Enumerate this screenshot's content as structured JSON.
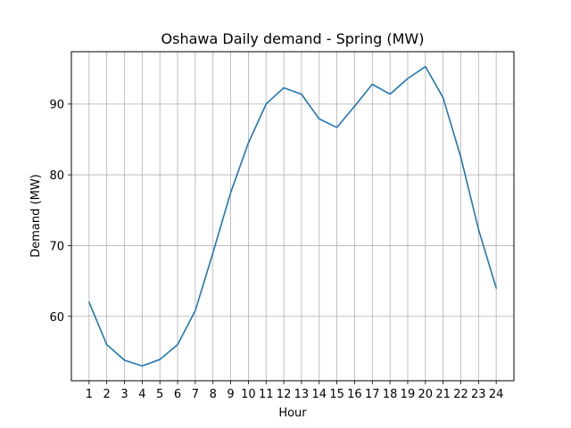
{
  "chart_data": {
    "type": "line",
    "title": "Oshawa Daily demand - Spring (MW)",
    "xlabel": "Hour",
    "ylabel": "Demand (MW)",
    "x": [
      1,
      2,
      3,
      4,
      5,
      6,
      7,
      8,
      9,
      10,
      11,
      12,
      13,
      14,
      15,
      16,
      17,
      18,
      19,
      20,
      21,
      22,
      23,
      24
    ],
    "series": [
      {
        "values": [
          62.0,
          56.0,
          53.8,
          53.0,
          53.9,
          56.0,
          60.8,
          69.0,
          77.5,
          84.5,
          90.0,
          92.3,
          91.4,
          87.9,
          86.7,
          89.7,
          92.8,
          91.4,
          93.6,
          95.3,
          90.9,
          82.5,
          72.3,
          64.0
        ],
        "color": "#1f77b4"
      }
    ],
    "xlim": [
      0,
      25
    ],
    "ylim": [
      50.9,
      97.4
    ],
    "yticks": [
      60,
      70,
      80,
      90
    ],
    "grid": true
  }
}
